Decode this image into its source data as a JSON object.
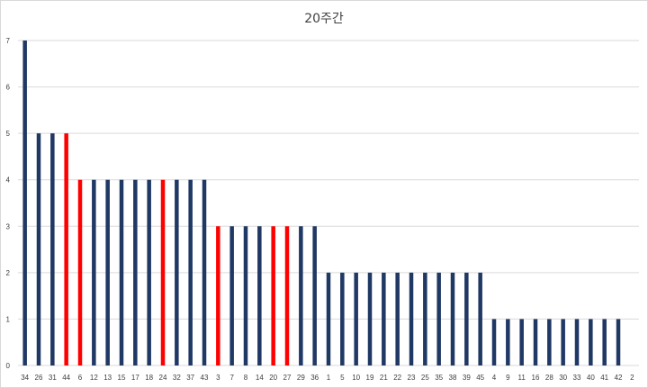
{
  "chart_data": {
    "type": "bar",
    "title": "20주간",
    "xlabel": "",
    "ylabel": "",
    "ylim": [
      0,
      7
    ],
    "yticks": [
      0,
      1,
      2,
      3,
      4,
      5,
      6,
      7
    ],
    "grid": true,
    "legend": "none",
    "categories": [
      "34",
      "26",
      "31",
      "44",
      "6",
      "12",
      "13",
      "15",
      "17",
      "18",
      "24",
      "32",
      "37",
      "43",
      "3",
      "7",
      "8",
      "14",
      "20",
      "27",
      "29",
      "36",
      "1",
      "5",
      "10",
      "19",
      "21",
      "22",
      "23",
      "25",
      "35",
      "38",
      "39",
      "45",
      "4",
      "9",
      "11",
      "16",
      "28",
      "30",
      "33",
      "40",
      "41",
      "42",
      "2"
    ],
    "values": [
      7,
      5,
      5,
      5,
      4,
      4,
      4,
      4,
      4,
      4,
      4,
      4,
      4,
      4,
      3,
      3,
      3,
      3,
      3,
      3,
      3,
      3,
      2,
      2,
      2,
      2,
      2,
      2,
      2,
      2,
      2,
      2,
      2,
      2,
      1,
      1,
      1,
      1,
      1,
      1,
      1,
      1,
      1,
      1,
      0
    ],
    "highlighted": [
      "44",
      "6",
      "24",
      "3",
      "20",
      "27"
    ],
    "colors": {
      "default": "#1f3864",
      "highlight": "#ff0000",
      "grid": "#d9d9d9",
      "text": "#404040"
    }
  }
}
